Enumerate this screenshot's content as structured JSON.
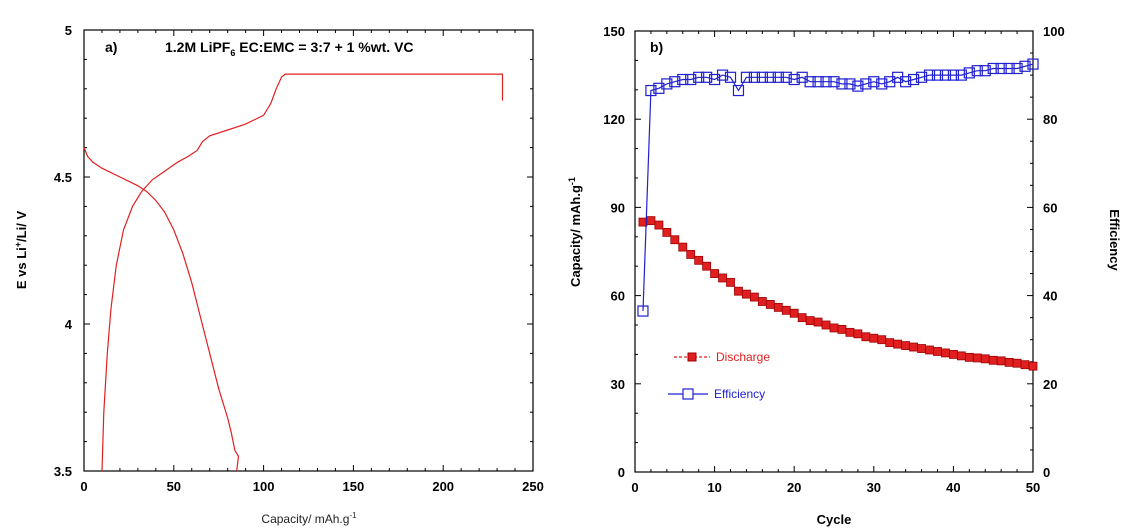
{
  "chart_data": [
    {
      "type": "line",
      "panel_label": "a)",
      "annotation": {
        "prefix": "1.2M LiPF",
        "subscript": "6",
        "suffix": " EC:EMC = 3:7 + 1 %wt. VC"
      },
      "xlabel": {
        "text": "Capacity/ mAh.g",
        "superscript": "-1"
      },
      "ylabel": {
        "before": "E vs Li",
        "sup": "+",
        "after": "/Li/ V"
      },
      "xlim": [
        0,
        250
      ],
      "ylim": [
        3.5,
        5.0
      ],
      "x_ticks": [
        0,
        50,
        100,
        150,
        200,
        250
      ],
      "y_ticks": [
        3.5,
        4,
        4.5,
        5
      ],
      "y_tick_labels": [
        "3.5",
        "4",
        "4.5",
        "5"
      ],
      "color": "#e02020",
      "series": [
        {
          "x": [
            10,
            11,
            13,
            15,
            18,
            22,
            27,
            32,
            38,
            45,
            52,
            58,
            63,
            66,
            70,
            80,
            90,
            100,
            104,
            107,
            110,
            112,
            233,
            233
          ],
          "y": [
            3.5,
            3.7,
            3.9,
            4.05,
            4.2,
            4.32,
            4.4,
            4.45,
            4.49,
            4.52,
            4.55,
            4.57,
            4.59,
            4.62,
            4.64,
            4.66,
            4.68,
            4.71,
            4.75,
            4.8,
            4.84,
            4.85,
            4.85,
            4.76
          ]
        },
        {
          "x": [
            0,
            2,
            5,
            10,
            20,
            30,
            35,
            40,
            45,
            50,
            55,
            60,
            65,
            70,
            75,
            78,
            80,
            82,
            83,
            84,
            86,
            85
          ],
          "y": [
            4.6,
            4.57,
            4.55,
            4.53,
            4.5,
            4.47,
            4.45,
            4.42,
            4.38,
            4.32,
            4.24,
            4.14,
            4.02,
            3.9,
            3.78,
            3.72,
            3.68,
            3.63,
            3.6,
            3.57,
            3.55,
            3.5
          ]
        }
      ]
    },
    {
      "type": "line",
      "panel_label": "b)",
      "xlabel": "Cycle",
      "ylabel_left": {
        "text": "Capacity/ mAh.g",
        "superscript": "-1"
      },
      "ylabel_right": "Efficiency",
      "xlim": [
        0,
        50
      ],
      "ylim_left": [
        0,
        150
      ],
      "ylim_right": [
        0,
        100
      ],
      "x_ticks": [
        0,
        10,
        20,
        30,
        40,
        50
      ],
      "y_ticks_left": [
        0,
        30,
        60,
        90,
        120,
        150
      ],
      "y_ticks_right": [
        0,
        20,
        40,
        60,
        80,
        100
      ],
      "legend_position": "center-left",
      "series": [
        {
          "name": "Discharge",
          "axis": "left",
          "color": "#e02020",
          "marker": "square-filled",
          "x": [
            1,
            2,
            3,
            4,
            5,
            6,
            7,
            8,
            9,
            10,
            11,
            12,
            13,
            14,
            15,
            16,
            17,
            18,
            19,
            20,
            21,
            22,
            23,
            24,
            25,
            26,
            27,
            28,
            29,
            30,
            31,
            32,
            33,
            34,
            35,
            36,
            37,
            38,
            39,
            40,
            41,
            42,
            43,
            44,
            45,
            46,
            47,
            48,
            49,
            50
          ],
          "y": [
            85,
            85.5,
            84,
            81.5,
            79,
            76.5,
            74,
            72,
            70,
            67.5,
            66,
            64.5,
            61.5,
            60.5,
            59.5,
            58,
            57,
            56,
            55,
            54,
            52.5,
            51.5,
            51,
            50,
            49,
            48.5,
            47.5,
            47,
            46,
            45.5,
            45,
            44,
            43.5,
            43,
            42.5,
            42,
            41.5,
            41,
            40.5,
            40,
            39.5,
            39,
            38.8,
            38.5,
            38,
            37.8,
            37.3,
            37,
            36.5,
            36
          ]
        },
        {
          "name": "Efficiency",
          "axis": "right",
          "color": "#2020d0",
          "marker": "square-open",
          "x": [
            1,
            2,
            3,
            4,
            5,
            6,
            7,
            8,
            9,
            10,
            11,
            12,
            13,
            14,
            15,
            16,
            17,
            18,
            19,
            20,
            21,
            22,
            23,
            24,
            25,
            26,
            27,
            28,
            29,
            30,
            31,
            32,
            33,
            34,
            35,
            36,
            37,
            38,
            39,
            40,
            41,
            42,
            43,
            44,
            45,
            46,
            47,
            48,
            49,
            50
          ],
          "y": [
            36.5,
            86.5,
            87,
            88,
            88.5,
            89,
            89,
            89.5,
            89.5,
            89,
            90,
            89.5,
            86.5,
            89.5,
            89.5,
            89.5,
            89.5,
            89.5,
            89.5,
            89,
            89.5,
            88.5,
            88.5,
            88.5,
            88.5,
            88,
            88,
            87.5,
            88,
            88.5,
            88,
            88.5,
            89.5,
            88.5,
            89,
            89.5,
            90,
            90,
            90,
            90,
            90,
            90.5,
            91,
            91,
            91.5,
            91.5,
            91.5,
            91.5,
            92,
            92.5
          ]
        }
      ]
    }
  ]
}
